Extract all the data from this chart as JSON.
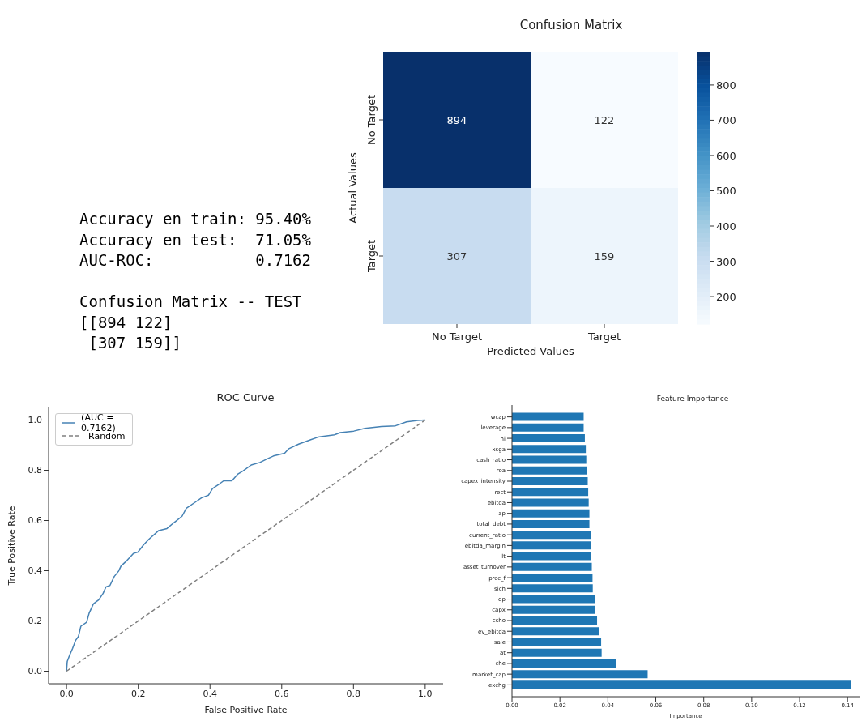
{
  "chart_data": [
    {
      "type": "other",
      "annotations": [
        "Accuracy en train: 95.40%",
        "Accuracy en test:  71.05%",
        "AUC-ROC:           0.7162",
        "Confusion Matrix -- TEST",
        "[[894 122]",
        " [307 159]]"
      ]
    },
    {
      "type": "heatmap",
      "title": "Confusion Matrix",
      "xlabel": "Predicted Values",
      "ylabel": "Actual Values",
      "categories": [
        "No Target",
        "Target"
      ],
      "y_categories": [
        "No Target",
        "Target"
      ],
      "cells": [
        [
          894,
          122
        ],
        [
          307,
          159
        ]
      ],
      "clim": [
        122,
        894
      ],
      "cticks": [
        200,
        300,
        400,
        500,
        600,
        700,
        800
      ],
      "data_labels": true
    },
    {
      "type": "line",
      "title": "ROC Curve",
      "xlabel": "False Positive Rate",
      "ylabel": "True Positive Rate",
      "legend": "top left",
      "xlim": [
        -0.05,
        1.05
      ],
      "ylim": [
        -0.05,
        1.05
      ],
      "xticks": [
        {
          "value": 0,
          "label": "0.0"
        },
        {
          "value": 0.2,
          "label": "0.2"
        },
        {
          "value": 0.4,
          "label": "0.4"
        },
        {
          "value": 0.6,
          "label": "0.6"
        },
        {
          "value": 0.8,
          "label": "0.8"
        },
        {
          "value": 1,
          "label": "1.0"
        }
      ],
      "yticks": [
        {
          "value": 0,
          "label": "0.0"
        },
        {
          "value": 0.2,
          "label": "0.2"
        },
        {
          "value": 0.4,
          "label": "0.4"
        },
        {
          "value": 0.6,
          "label": "0.6"
        },
        {
          "value": 0.8,
          "label": "0.8"
        },
        {
          "value": 1,
          "label": "1.0"
        }
      ],
      "series": [
        {
          "name": "(AUC = 0.7162)",
          "color": "#4682b4",
          "line_style": "solid",
          "x": [
            0,
            0.002,
            0.009,
            0.017,
            0.025,
            0.033,
            0.04,
            0.056,
            0.063,
            0.075,
            0.09,
            0.102,
            0.11,
            0.121,
            0.133,
            0.145,
            0.152,
            0.168,
            0.187,
            0.199,
            0.215,
            0.23,
            0.257,
            0.28,
            0.299,
            0.322,
            0.334,
            0.361,
            0.376,
            0.396,
            0.407,
            0.423,
            0.438,
            0.461,
            0.477,
            0.492,
            0.515,
            0.539,
            0.562,
            0.577,
            0.608,
            0.62,
            0.647,
            0.678,
            0.701,
            0.747,
            0.763,
            0.801,
            0.832,
            0.878,
            0.917,
            0.948,
            0.979,
            1
          ],
          "values": [
            0,
            0.039,
            0.065,
            0.091,
            0.122,
            0.138,
            0.179,
            0.195,
            0.231,
            0.268,
            0.284,
            0.31,
            0.336,
            0.341,
            0.377,
            0.398,
            0.419,
            0.44,
            0.469,
            0.474,
            0.503,
            0.526,
            0.56,
            0.568,
            0.591,
            0.617,
            0.649,
            0.675,
            0.69,
            0.701,
            0.727,
            0.742,
            0.758,
            0.758,
            0.784,
            0.797,
            0.821,
            0.831,
            0.847,
            0.857,
            0.868,
            0.886,
            0.904,
            0.92,
            0.932,
            0.941,
            0.95,
            0.956,
            0.967,
            0.974,
            0.977,
            0.993,
            0.998,
            1
          ]
        },
        {
          "name": "Random",
          "color": "#808080",
          "line_style": "dashed",
          "x": [
            0,
            1
          ],
          "values": [
            0,
            1
          ]
        }
      ]
    },
    {
      "type": "bar",
      "orientation": "horizontal",
      "title": "Feature Importance",
      "xlabel": "Importance",
      "color": "#1f77b4",
      "categories": [
        "wcap",
        "leverage",
        "ni",
        "xsga",
        "cash_ratio",
        "roa",
        "capex_intensity",
        "rect",
        "ebitda",
        "ap",
        "total_debt",
        "current_ratio",
        "ebitda_margin",
        "lt",
        "asset_turnover",
        "prcc_f",
        "sich",
        "dp",
        "capx",
        "csho",
        "ev_ebitda",
        "sale",
        "at",
        "che",
        "market_cap",
        "exchg"
      ],
      "values": [
        0.0299,
        0.0299,
        0.0304,
        0.0308,
        0.031,
        0.0312,
        0.0316,
        0.0318,
        0.032,
        0.0323,
        0.0323,
        0.0329,
        0.0329,
        0.0331,
        0.0333,
        0.0336,
        0.0337,
        0.0346,
        0.0348,
        0.0355,
        0.0364,
        0.0372,
        0.0374,
        0.0433,
        0.0566,
        0.1415
      ],
      "xlim": [
        0,
        0.145
      ],
      "xticks": [
        {
          "value": 0,
          "label": "0.00"
        },
        {
          "value": 0.02,
          "label": "0.02"
        },
        {
          "value": 0.04,
          "label": "0.04"
        },
        {
          "value": 0.06,
          "label": "0.06"
        },
        {
          "value": 0.08,
          "label": "0.08"
        },
        {
          "value": 0.1,
          "label": "0.10"
        },
        {
          "value": 0.12,
          "label": "0.12"
        },
        {
          "value": 0.14,
          "label": "0.14"
        }
      ]
    }
  ]
}
